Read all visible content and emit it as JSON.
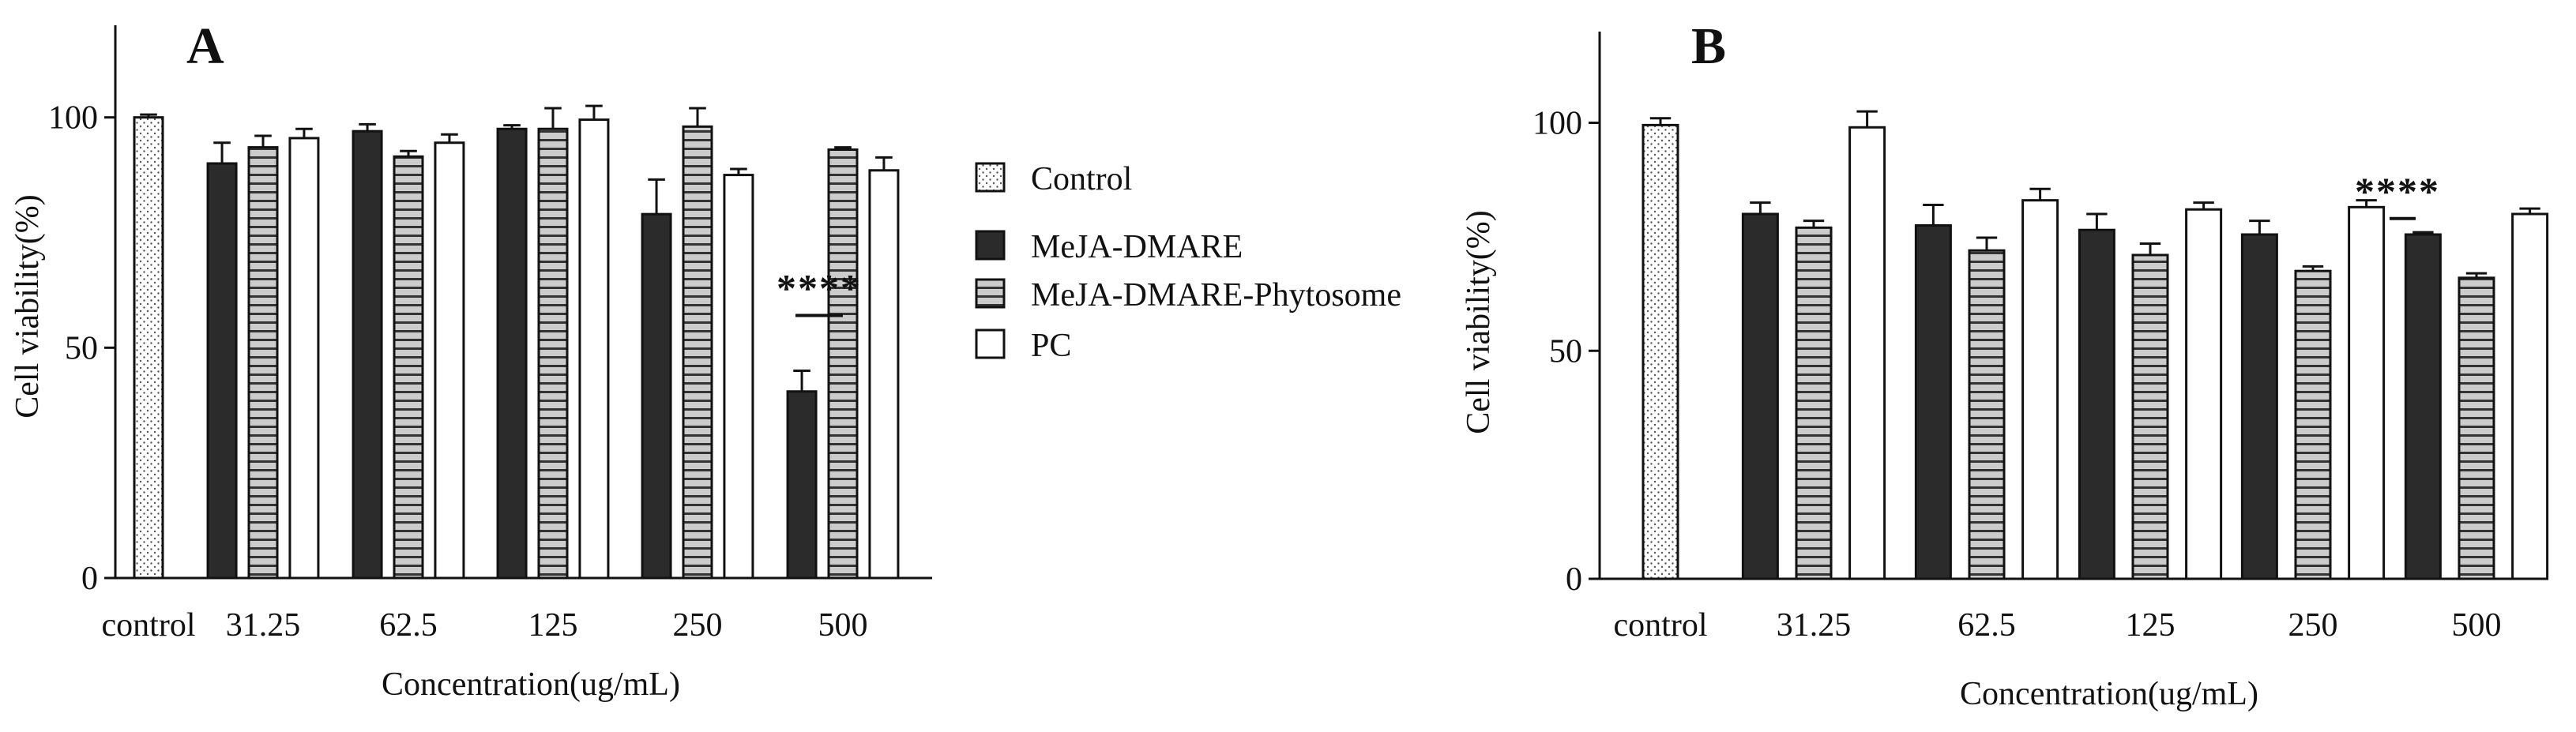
{
  "chart_data": [
    {
      "type": "bar",
      "panel_label": "A",
      "xlabel": "Concentration(ug/mL)",
      "ylabel": "Cell viability(%)",
      "ylim": [
        0,
        120
      ],
      "yticks": [
        0,
        50,
        100
      ],
      "grid": false,
      "control": {
        "label": "control",
        "value": 100,
        "error": 0.6,
        "series": "Control"
      },
      "categories": [
        "31.25",
        "62.5",
        "125",
        "250",
        "500"
      ],
      "series": [
        {
          "name": "MeJA-DMARE",
          "values": [
            90,
            97,
            97.5,
            79,
            40.5
          ],
          "errors": [
            4.5,
            1.5,
            0.8,
            7.5,
            4.5
          ]
        },
        {
          "name": "MeJA-DMARE-Phytosome",
          "values": [
            93.5,
            91.5,
            97.5,
            98,
            93
          ],
          "errors": [
            2.5,
            1.2,
            4.5,
            4,
            0.5
          ]
        },
        {
          "name": "PC",
          "values": [
            95.5,
            94.5,
            99.5,
            87.5,
            88.5
          ],
          "errors": [
            2,
            1.8,
            3,
            1.3,
            2.8
          ]
        }
      ],
      "annotations": [
        {
          "text": "****",
          "category": "500"
        }
      ]
    },
    {
      "type": "bar",
      "panel_label": "B",
      "xlabel": "Concentration(ug/mL)",
      "ylabel": "Cell viability(%)",
      "ylim": [
        0,
        120
      ],
      "yticks": [
        0,
        50,
        100
      ],
      "grid": false,
      "control": {
        "label": "control",
        "value": 99.5,
        "error": 1.5,
        "series": "Control"
      },
      "categories": [
        "31.25",
        "62.5",
        "125",
        "250",
        "500"
      ],
      "series": [
        {
          "name": "MeJA-DMARE",
          "values": [
            80,
            77.5,
            76.5,
            75.5,
            75.5
          ],
          "errors": [
            2.5,
            4.5,
            3.5,
            3,
            0.5
          ]
        },
        {
          "name": "MeJA-DMARE-Phytosome",
          "values": [
            77,
            72,
            71,
            67.5,
            66
          ],
          "errors": [
            1.5,
            2.8,
            2.5,
            1,
            1
          ]
        },
        {
          "name": "PC",
          "values": [
            99,
            83,
            81,
            81.5,
            80
          ],
          "errors": [
            3.5,
            2.5,
            1.5,
            1.5,
            1.2
          ]
        }
      ],
      "annotations": [
        {
          "text": "****",
          "category": "250"
        }
      ]
    }
  ],
  "legend": {
    "placement": "between-panels",
    "items": [
      {
        "label": "Control",
        "pattern": "dots"
      },
      {
        "label": "MeJA-DMARE",
        "pattern": "solid-dark"
      },
      {
        "label": "MeJA-DMARE-Phytosome",
        "pattern": "horizontal-stripes"
      },
      {
        "label": "PC",
        "pattern": "white"
      }
    ]
  },
  "colors": {
    "MeJA-DMARE": "#2b2b2b",
    "MeJA-DMARE-Phytosome": "#cccccc",
    "stripe": "#333333",
    "PC": "#ffffff",
    "Control": "#ffffff",
    "dots": "#555555"
  }
}
